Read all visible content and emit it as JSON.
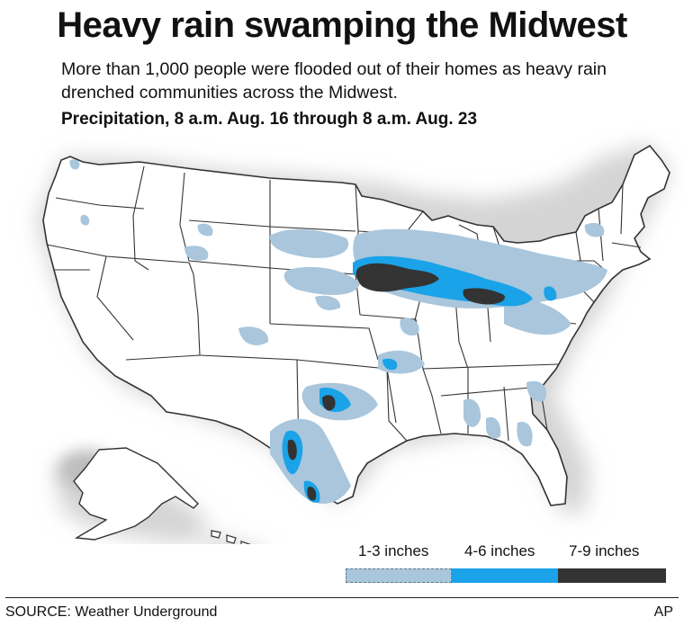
{
  "header": {
    "title": "Heavy rain swamping the Midwest",
    "subtitle": "More than 1,000 people were flooded out of their homes as heavy rain drenched communities across the Midwest.",
    "date_range": "Precipitation, 8 a.m. Aug. 16 through 8 a.m. Aug. 23"
  },
  "legend": {
    "items": [
      {
        "label": "1-3 inches",
        "color": "#a9c6dc"
      },
      {
        "label": "4-6 inches",
        "color": "#1aa3e8"
      },
      {
        "label": "7-9 inches",
        "color": "#333333"
      }
    ]
  },
  "footer": {
    "source": "SOURCE: Weather Underground",
    "credit": "AP"
  },
  "colors": {
    "land": "#ffffff",
    "border": "#333333",
    "ocean_shadow": "#cfcfcf"
  }
}
